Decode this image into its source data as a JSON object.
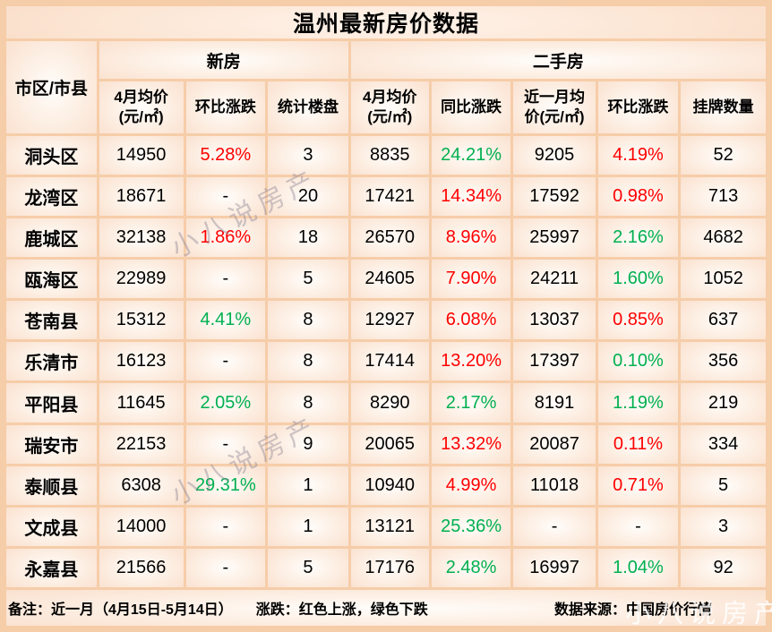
{
  "title": "温州最新房价数据",
  "colors": {
    "red": "#ff0000",
    "green": "#00b050",
    "border": "#f6cda9"
  },
  "watermark": {
    "text": "小八说房产"
  },
  "footer": {
    "note": "备注：近一月（4月15日-5月14日）",
    "legend": "涨跌：红色上涨，绿色下跌",
    "source": "数据来源：中国房价行情"
  },
  "chart_data": {
    "type": "table",
    "title": "温州最新房价数据",
    "corner_header": "市区/市县",
    "groups": [
      "新房",
      "二手房"
    ],
    "columns": [
      "4月均价(元/㎡)",
      "环比涨跌",
      "统计楼盘",
      "4月均价(元/㎡)",
      "同比涨跌",
      "近一月均价(元/㎡)",
      "环比涨跌",
      "挂牌数量"
    ],
    "legend_note": "红色上涨，绿色下跌",
    "rows": [
      {
        "district": "洞头区",
        "new_price": "14950",
        "new_mom": "5.28%",
        "new_mom_color": "red",
        "new_count": "3",
        "used_price": "8835",
        "used_yoy": "24.21%",
        "used_yoy_color": "green",
        "used_month_price": "9205",
        "used_mom": "4.19%",
        "used_mom_color": "red",
        "listings": "52"
      },
      {
        "district": "龙湾区",
        "new_price": "18671",
        "new_mom": "-",
        "new_mom_color": null,
        "new_count": "20",
        "used_price": "17421",
        "used_yoy": "14.34%",
        "used_yoy_color": "red",
        "used_month_price": "17592",
        "used_mom": "0.98%",
        "used_mom_color": "red",
        "listings": "713"
      },
      {
        "district": "鹿城区",
        "new_price": "32138",
        "new_mom": "1.86%",
        "new_mom_color": "red",
        "new_count": "18",
        "used_price": "26570",
        "used_yoy": "8.96%",
        "used_yoy_color": "red",
        "used_month_price": "25997",
        "used_mom": "2.16%",
        "used_mom_color": "green",
        "listings": "4682"
      },
      {
        "district": "瓯海区",
        "new_price": "22989",
        "new_mom": "-",
        "new_mom_color": null,
        "new_count": "5",
        "used_price": "24605",
        "used_yoy": "7.90%",
        "used_yoy_color": "red",
        "used_month_price": "24211",
        "used_mom": "1.60%",
        "used_mom_color": "green",
        "listings": "1052"
      },
      {
        "district": "苍南县",
        "new_price": "15312",
        "new_mom": "4.41%",
        "new_mom_color": "green",
        "new_count": "8",
        "used_price": "12927",
        "used_yoy": "6.08%",
        "used_yoy_color": "red",
        "used_month_price": "13037",
        "used_mom": "0.85%",
        "used_mom_color": "red",
        "listings": "637"
      },
      {
        "district": "乐清市",
        "new_price": "16123",
        "new_mom": "-",
        "new_mom_color": null,
        "new_count": "8",
        "used_price": "17414",
        "used_yoy": "13.20%",
        "used_yoy_color": "red",
        "used_month_price": "17397",
        "used_mom": "0.10%",
        "used_mom_color": "green",
        "listings": "356"
      },
      {
        "district": "平阳县",
        "new_price": "11645",
        "new_mom": "2.05%",
        "new_mom_color": "green",
        "new_count": "8",
        "used_price": "8290",
        "used_yoy": "2.17%",
        "used_yoy_color": "green",
        "used_month_price": "8191",
        "used_mom": "1.19%",
        "used_mom_color": "green",
        "listings": "219"
      },
      {
        "district": "瑞安市",
        "new_price": "22153",
        "new_mom": "-",
        "new_mom_color": null,
        "new_count": "9",
        "used_price": "20065",
        "used_yoy": "13.32%",
        "used_yoy_color": "red",
        "used_month_price": "20087",
        "used_mom": "0.11%",
        "used_mom_color": "red",
        "listings": "334"
      },
      {
        "district": "泰顺县",
        "new_price": "6308",
        "new_mom": "29.31%",
        "new_mom_color": "green",
        "new_count": "1",
        "used_price": "10940",
        "used_yoy": "4.99%",
        "used_yoy_color": "red",
        "used_month_price": "11018",
        "used_mom": "0.71%",
        "used_mom_color": "red",
        "listings": "5"
      },
      {
        "district": "文成县",
        "new_price": "14000",
        "new_mom": "-",
        "new_mom_color": null,
        "new_count": "1",
        "used_price": "13121",
        "used_yoy": "25.36%",
        "used_yoy_color": "green",
        "used_month_price": "-",
        "used_mom": "-",
        "used_mom_color": null,
        "listings": "3"
      },
      {
        "district": "永嘉县",
        "new_price": "21566",
        "new_mom": "-",
        "new_mom_color": null,
        "new_count": "5",
        "used_price": "17176",
        "used_yoy": "2.48%",
        "used_yoy_color": "green",
        "used_month_price": "16997",
        "used_mom": "1.04%",
        "used_mom_color": "green",
        "listings": "92"
      }
    ]
  }
}
